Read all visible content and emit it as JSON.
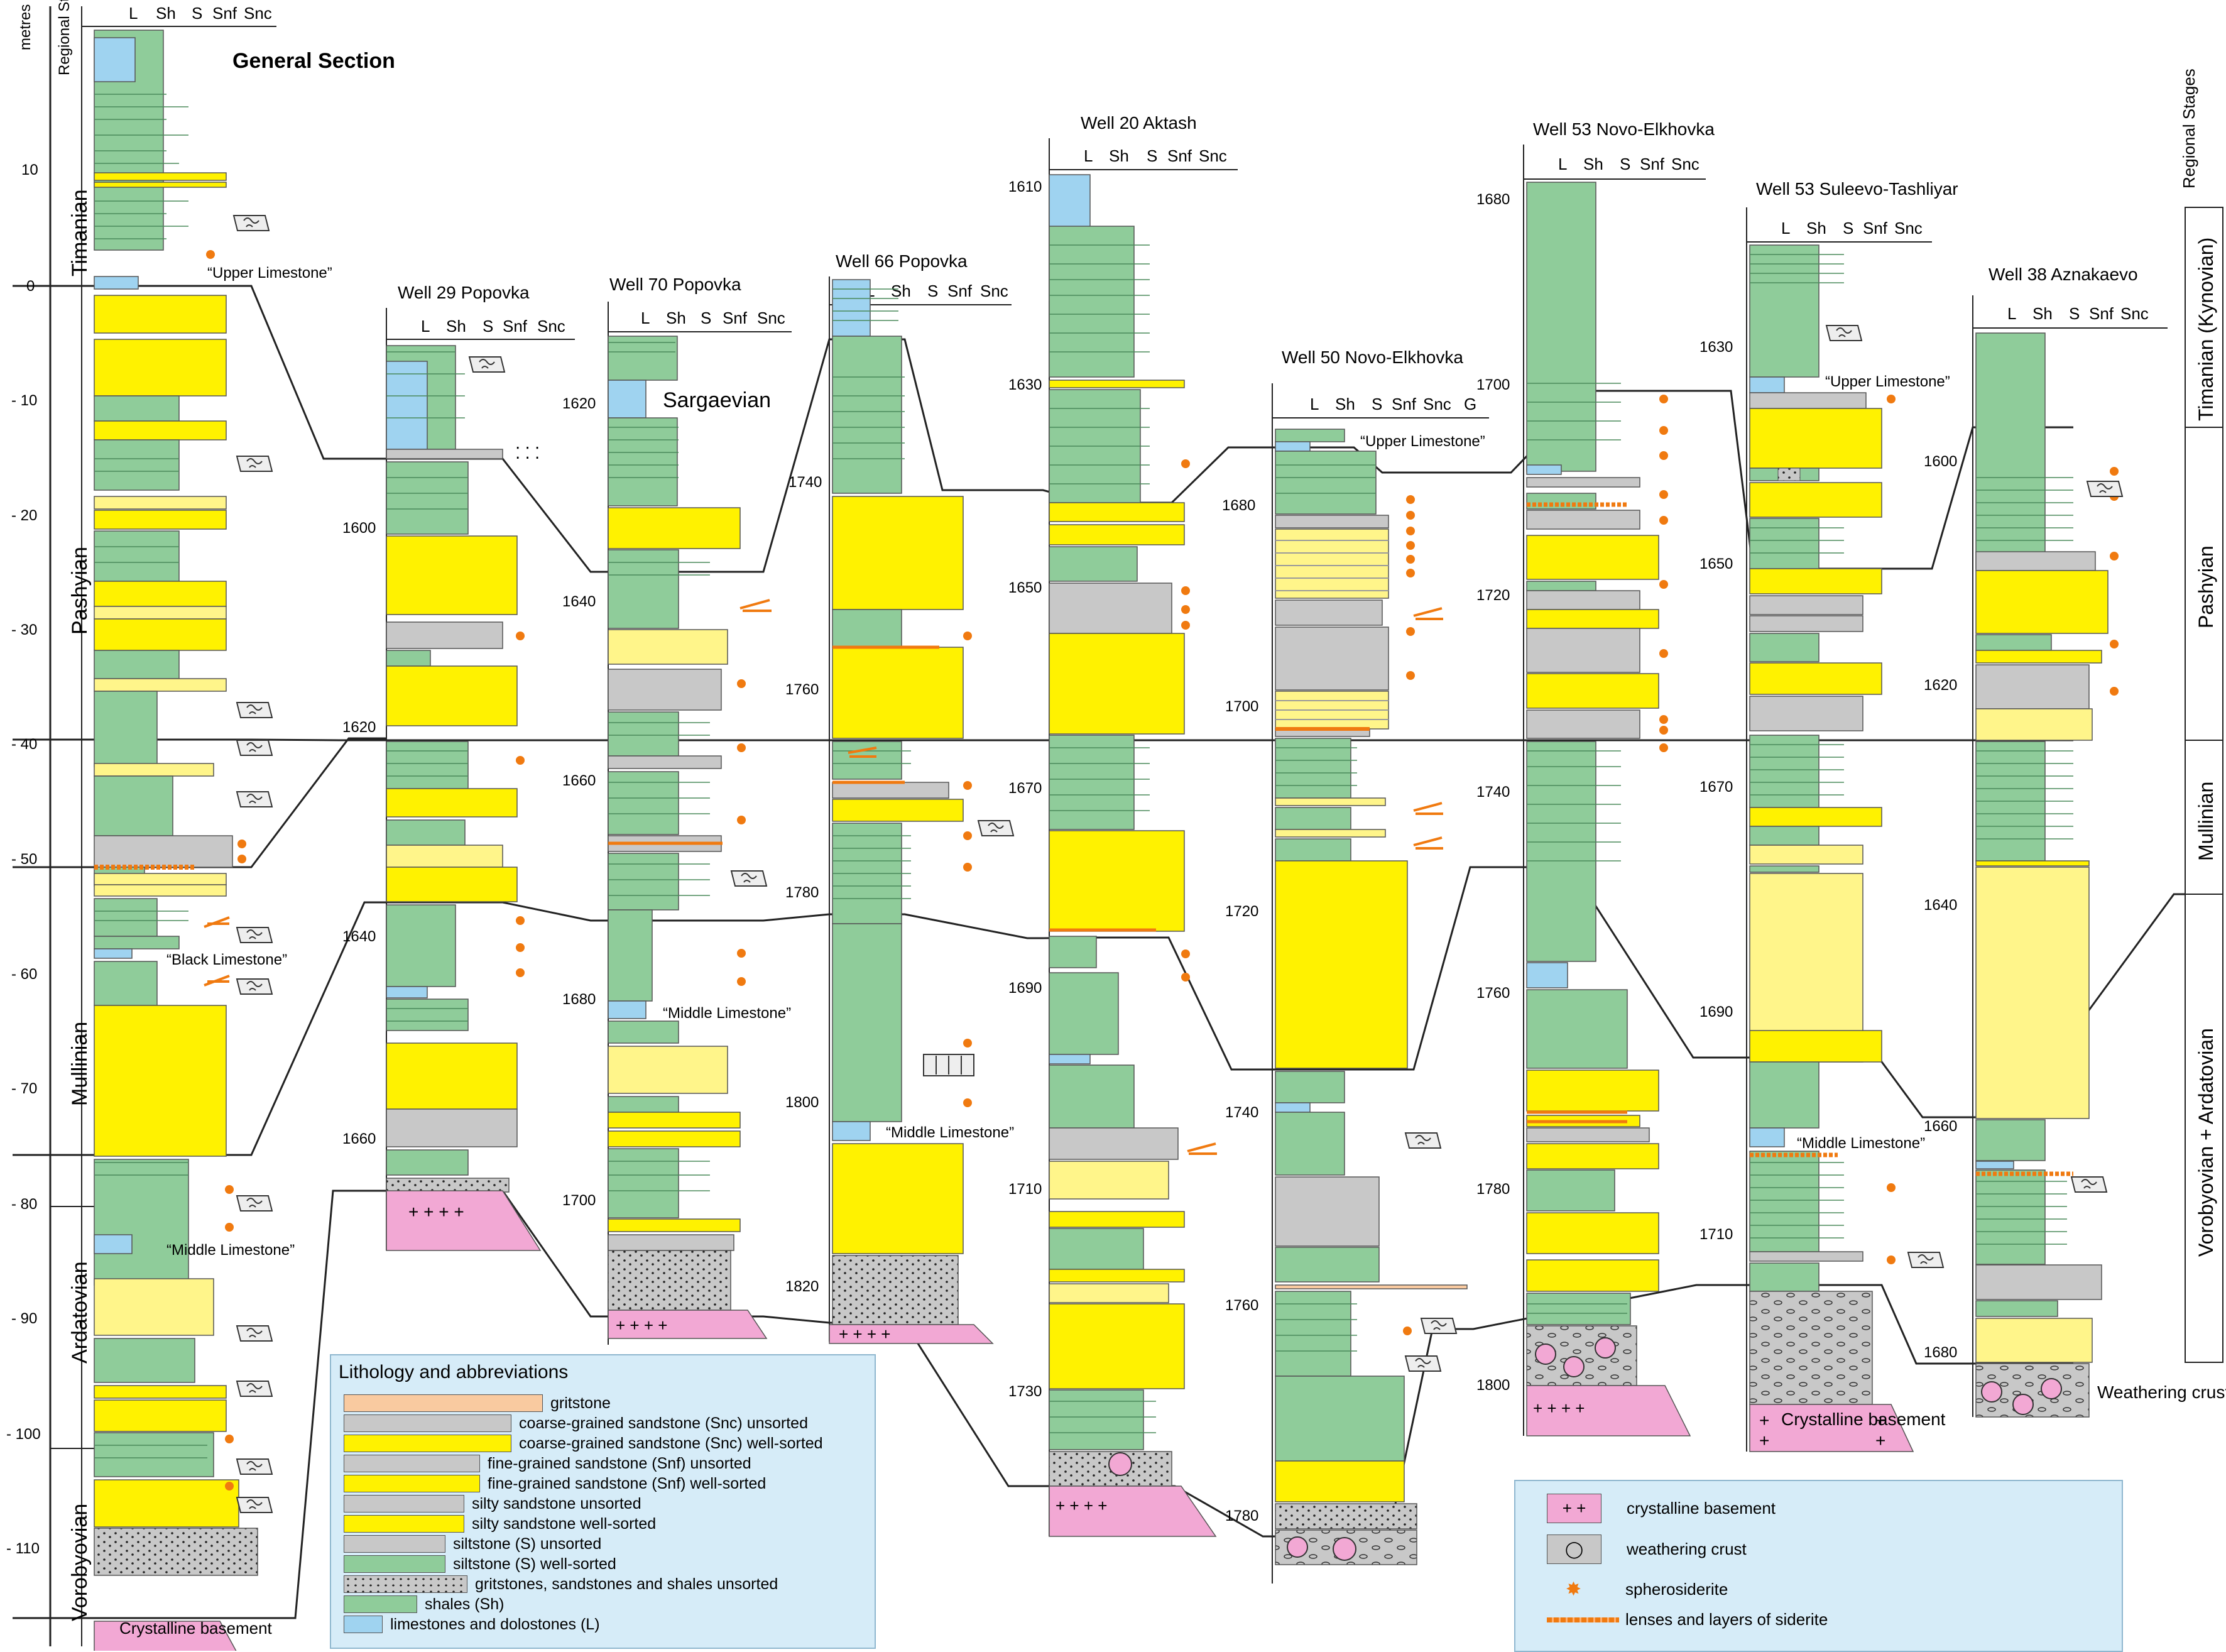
{
  "title": "General Section",
  "colors": {
    "shale": "#8fcc9a",
    "limestone": "#9fd3f0",
    "silt_unsorted": "#c8c8c8",
    "silt_sorted": "#8fcc9a",
    "sand_sorted": "#fff200",
    "sand_pale": "#fff58a",
    "gritstone": "#f9caa0",
    "basement": "#f2a8d4",
    "weathering": "#c8c8c8",
    "siderite": "#f07a10"
  },
  "lith_header": [
    "L",
    "Sh",
    "S",
    "Snf",
    "Snc"
  ],
  "lith_header_g": "G",
  "general": {
    "metres_label": "metres",
    "regional_label": "Regional Stages",
    "ticks": [
      "10",
      "0",
      "- 10",
      "- 20",
      "- 30",
      "- 40",
      "- 50",
      "- 60",
      "- 70",
      "- 80",
      "- 90",
      "- 100",
      "- 110"
    ],
    "stages": [
      "Timanian",
      "Pashyian",
      "Mullinian",
      "Ardatovian",
      "Vorobyovian"
    ],
    "notes": [
      "“Upper Limestone”",
      "“Black Limestone”",
      "“Middle Limestone”"
    ],
    "basement_label": "Crystalline basement"
  },
  "wells": [
    {
      "name": "Well 29 Popovka",
      "ticks": [
        "1600",
        "1620",
        "1640",
        "1660"
      ]
    },
    {
      "name": "Well 70 Popovka",
      "ticks": [
        "1620",
        "1640",
        "1660",
        "1680",
        "1700"
      ],
      "note1": "Sargaevian",
      "note2": "“Middle Limestone”"
    },
    {
      "name": "Well 66 Popovka",
      "ticks": [
        "1740",
        "1760",
        "1780",
        "1800",
        "1820"
      ],
      "note1": "“Middle Limestone”"
    },
    {
      "name": "Well 20 Aktash",
      "ticks": [
        "1610",
        "1630",
        "1650",
        "1670",
        "1690",
        "1710",
        "1730"
      ]
    },
    {
      "name": "Well 50 Novo-Elkhovka",
      "ticks": [
        "1680",
        "1700",
        "1720",
        "1740",
        "1760",
        "1780"
      ],
      "note1": "“Upper Limestone”"
    },
    {
      "name": "Well 53 Novo-Elkhovka",
      "ticks": [
        "1680",
        "1700",
        "1720",
        "1740",
        "1760",
        "1780",
        "1800"
      ]
    },
    {
      "name": "Well 53 Suleevo-Tashliyar",
      "ticks": [
        "1630",
        "1650",
        "1670",
        "1690",
        "1710"
      ],
      "note1": "“Upper Limestone”",
      "note2": "“Middle Limestone”",
      "basement_label": "Crystalline basement"
    },
    {
      "name": "Well 38 Aznakaevo",
      "ticks": [
        "1600",
        "1620",
        "1640",
        "1660",
        "1680"
      ],
      "note1": "Weathering crust"
    }
  ],
  "right_stages": {
    "header": "Regional Stages",
    "items": [
      "Timanian (Kynovian)",
      "Pashyian",
      "Mullinian",
      "Vorobyovian  +  Ardatovian"
    ]
  },
  "legend": {
    "title": "Lithology and abbreviations",
    "items": [
      "gritstone",
      "coarse-grained sandstone (Snc) unsorted",
      "coarse-grained sandstone (Snc) well-sorted",
      "fine-grained sandstone (Snf) unsorted",
      "fine-grained sandstone (Snf) well-sorted",
      "silty sandstone unsorted",
      "silty sandstone well-sorted",
      "siltstone (S) unsorted",
      "siltstone (S) well-sorted",
      "gritstones, sandstones and shales unsorted",
      "shales (Sh)",
      "limestones and dolostones (L)"
    ]
  },
  "legend2": {
    "items": [
      "crystalline basement",
      "weathering crust",
      "spherosiderite",
      "lenses and layers of siderite"
    ]
  }
}
